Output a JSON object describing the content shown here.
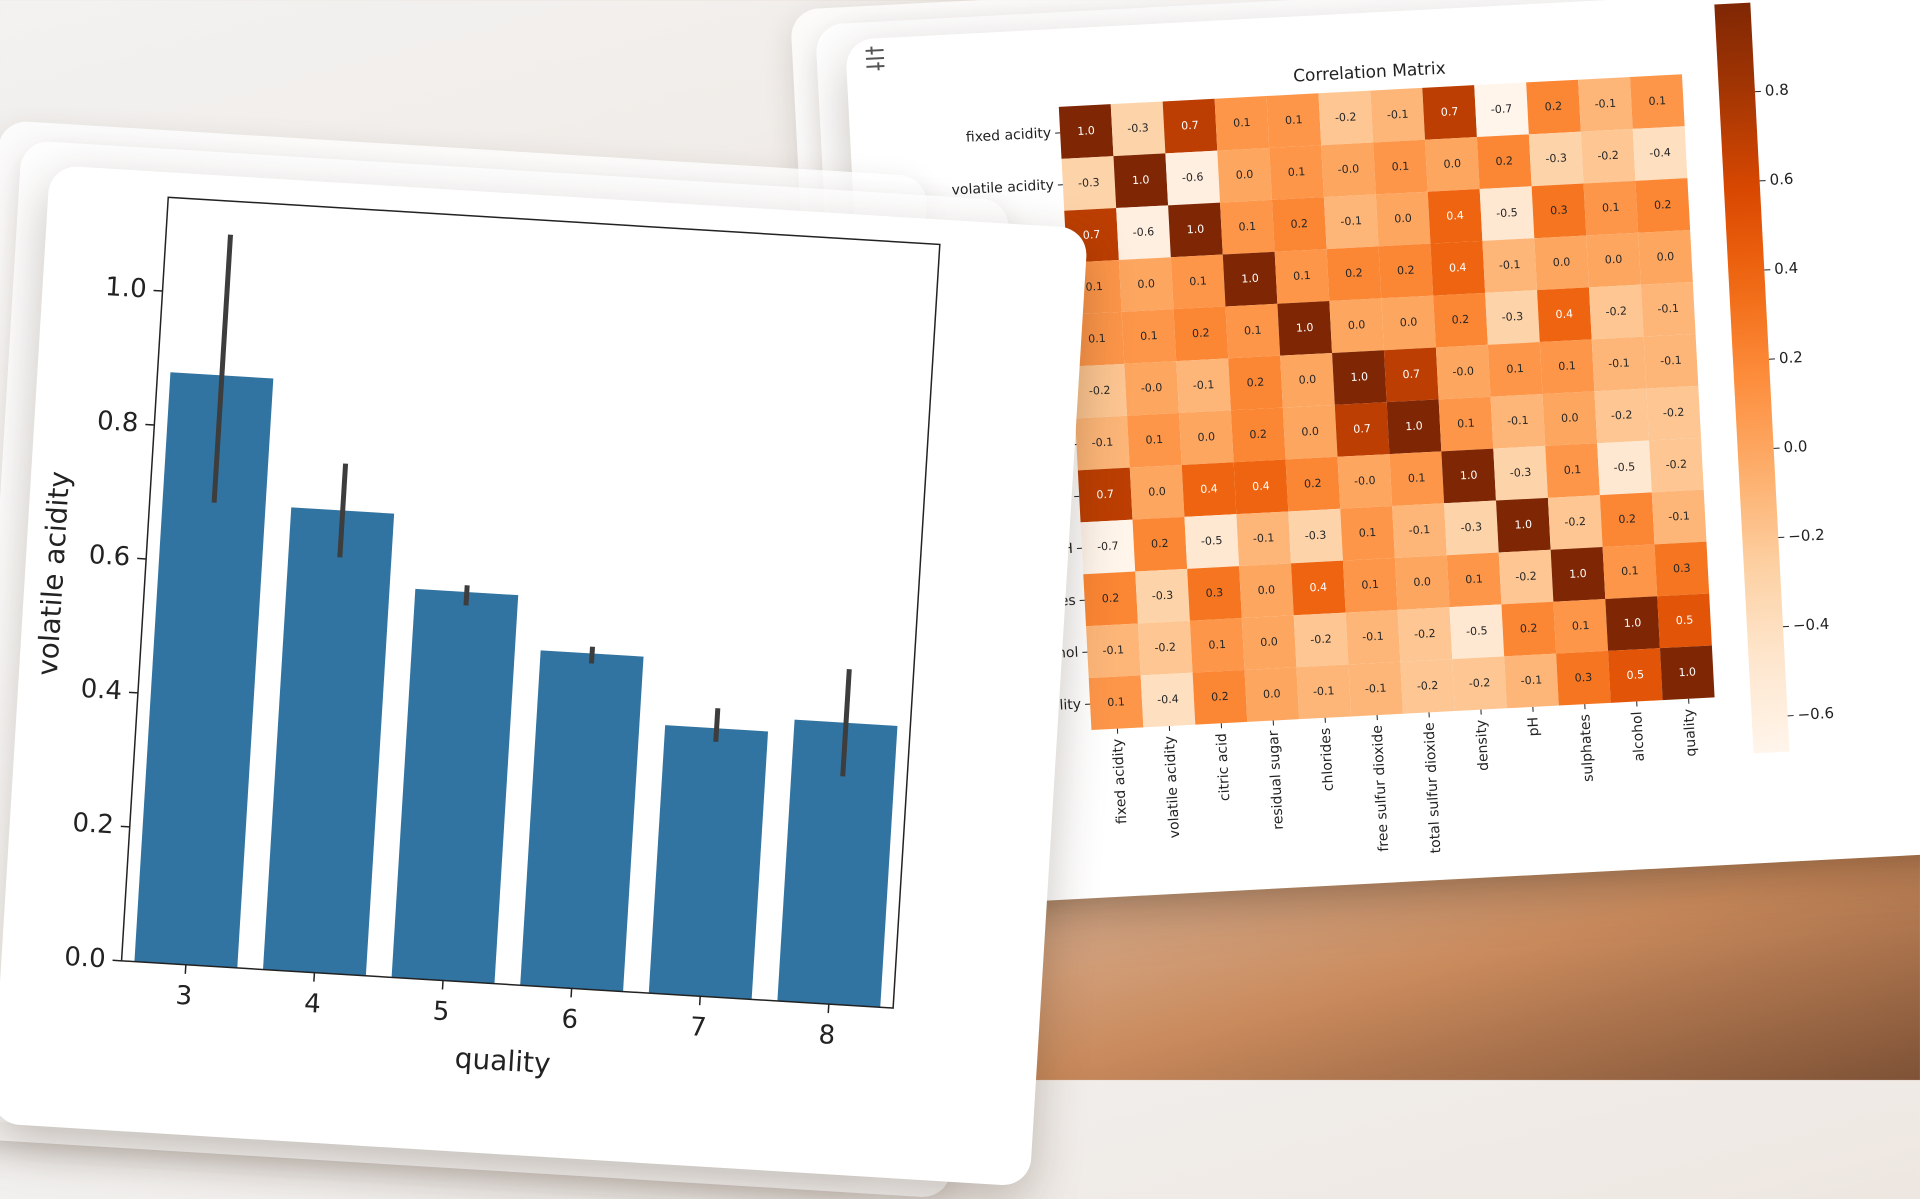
{
  "chart_data": [
    {
      "type": "bar",
      "categories": [
        "3",
        "4",
        "5",
        "6",
        "7",
        "8"
      ],
      "values": [
        0.88,
        0.69,
        0.58,
        0.5,
        0.4,
        0.42
      ],
      "ci_low": [
        0.69,
        0.62,
        0.56,
        0.485,
        0.38,
        0.34
      ],
      "ci_high": [
        1.09,
        0.76,
        0.59,
        0.51,
        0.43,
        0.5
      ],
      "color": "#3274a1",
      "errorbar_color": "#3d3d3d",
      "xlabel": "quality",
      "ylabel": "volatile acidity",
      "ylim": [
        0,
        1.14
      ],
      "yticks": [
        {
          "value": 0,
          "label": "0.0"
        },
        0.2,
        0.4,
        0.6,
        0.8,
        {
          "value": 1,
          "label": "1.0"
        }
      ]
    },
    {
      "type": "heatmap",
      "title": "Correlation Matrix",
      "labels": [
        "fixed acidity",
        "volatile acidity",
        "citric acid",
        "residual sugar",
        "chlorides",
        "free sulfur dioxide",
        "total sulfur dioxide",
        "density",
        "pH",
        "sulphates",
        "alcohol",
        "quality"
      ],
      "values": [
        [
          1.0,
          -0.3,
          0.7,
          0.1,
          0.1,
          -0.2,
          -0.1,
          0.7,
          -0.7,
          0.2,
          -0.1,
          0.1
        ],
        [
          -0.3,
          1.0,
          -0.6,
          0.0,
          0.1,
          0.0,
          0.1,
          0.0,
          0.2,
          -0.3,
          -0.2,
          -0.4
        ],
        [
          0.7,
          -0.6,
          1.0,
          0.1,
          0.2,
          -0.1,
          0.0,
          0.4,
          -0.5,
          0.3,
          0.1,
          0.2
        ],
        [
          0.1,
          0.0,
          0.1,
          1.0,
          0.1,
          0.2,
          0.2,
          0.4,
          -0.1,
          0.0,
          0.0,
          0.0
        ],
        [
          0.1,
          0.1,
          0.2,
          0.1,
          1.0,
          0.0,
          0.0,
          0.2,
          -0.3,
          0.4,
          -0.2,
          -0.1
        ],
        [
          -0.2,
          0.0,
          -0.1,
          0.2,
          0.0,
          1.0,
          0.7,
          0.0,
          0.1,
          0.1,
          -0.1,
          -0.1
        ],
        [
          -0.1,
          0.1,
          0.0,
          0.2,
          0.0,
          0.7,
          1.0,
          0.1,
          -0.1,
          0.0,
          -0.2,
          -0.2
        ],
        [
          0.7,
          0.0,
          0.4,
          0.4,
          0.2,
          0.0,
          0.1,
          1.0,
          -0.3,
          0.1,
          -0.5,
          -0.2
        ],
        [
          -0.7,
          0.2,
          -0.5,
          -0.1,
          -0.3,
          0.1,
          -0.1,
          -0.3,
          1.0,
          -0.2,
          0.2,
          -0.1
        ],
        [
          0.2,
          -0.3,
          0.3,
          0.0,
          0.4,
          0.1,
          0.0,
          0.1,
          -0.2,
          1.0,
          0.1,
          0.3
        ],
        [
          -0.1,
          -0.2,
          0.1,
          0.0,
          -0.2,
          -0.1,
          -0.2,
          -0.5,
          0.2,
          0.1,
          1.0,
          0.5
        ],
        [
          0.1,
          -0.4,
          0.2,
          0.0,
          -0.1,
          -0.1,
          -0.2,
          -0.2,
          -0.1,
          0.3,
          0.5,
          1.0
        ]
      ],
      "value_labels": [
        [
          "1.0",
          "-0.3",
          "0.7",
          "0.1",
          "0.1",
          "-0.2",
          "-0.1",
          "0.7",
          "-0.7",
          "0.2",
          "-0.1",
          "0.1"
        ],
        [
          "-0.3",
          "1.0",
          "-0.6",
          "0.0",
          "0.1",
          "-0.0",
          "0.1",
          "0.0",
          "0.2",
          "-0.3",
          "-0.2",
          "-0.4"
        ],
        [
          "0.7",
          "-0.6",
          "1.0",
          "0.1",
          "0.2",
          "-0.1",
          "0.0",
          "0.4",
          "-0.5",
          "0.3",
          "0.1",
          "0.2"
        ],
        [
          "0.1",
          "0.0",
          "0.1",
          "1.0",
          "0.1",
          "0.2",
          "0.2",
          "0.4",
          "-0.1",
          "0.0",
          "0.0",
          "0.0"
        ],
        [
          "0.1",
          "0.1",
          "0.2",
          "0.1",
          "1.0",
          "0.0",
          "0.0",
          "0.2",
          "-0.3",
          "0.4",
          "-0.2",
          "-0.1"
        ],
        [
          "-0.2",
          "-0.0",
          "-0.1",
          "0.2",
          "0.0",
          "1.0",
          "0.7",
          "-0.0",
          "0.1",
          "0.1",
          "-0.1",
          "-0.1"
        ],
        [
          "-0.1",
          "0.1",
          "0.0",
          "0.2",
          "0.0",
          "0.7",
          "1.0",
          "0.1",
          "-0.1",
          "0.0",
          "-0.2",
          "-0.2"
        ],
        [
          "0.7",
          "0.0",
          "0.4",
          "0.4",
          "0.2",
          "-0.0",
          "0.1",
          "1.0",
          "-0.3",
          "0.1",
          "-0.5",
          "-0.2"
        ],
        [
          "-0.7",
          "0.2",
          "-0.5",
          "-0.1",
          "-0.3",
          "0.1",
          "-0.1",
          "-0.3",
          "1.0",
          "-0.2",
          "0.2",
          "-0.1"
        ],
        [
          "0.2",
          "-0.3",
          "0.3",
          "0.0",
          "0.4",
          "0.1",
          "0.0",
          "0.1",
          "-0.2",
          "1.0",
          "0.1",
          "0.3"
        ],
        [
          "-0.1",
          "-0.2",
          "0.1",
          "0.0",
          "-0.2",
          "-0.1",
          "-0.2",
          "-0.5",
          "0.2",
          "0.1",
          "1.0",
          "0.5"
        ],
        [
          "0.1",
          "-0.4",
          "0.2",
          "0.0",
          "-0.1",
          "-0.1",
          "-0.2",
          "-0.2",
          "-0.1",
          "0.3",
          "0.5",
          "1.0"
        ]
      ],
      "colormap": "Oranges",
      "clim": [
        -0.68,
        1
      ],
      "cticks": [
        {
          "value": -0.6,
          "label": "−0.6"
        },
        {
          "value": -0.4,
          "label": "−0.4"
        },
        {
          "value": -0.2,
          "label": "−0.2"
        },
        {
          "value": 0,
          "label": "0.0"
        },
        0.2,
        0.4,
        0.6,
        0.8
      ]
    }
  ]
}
